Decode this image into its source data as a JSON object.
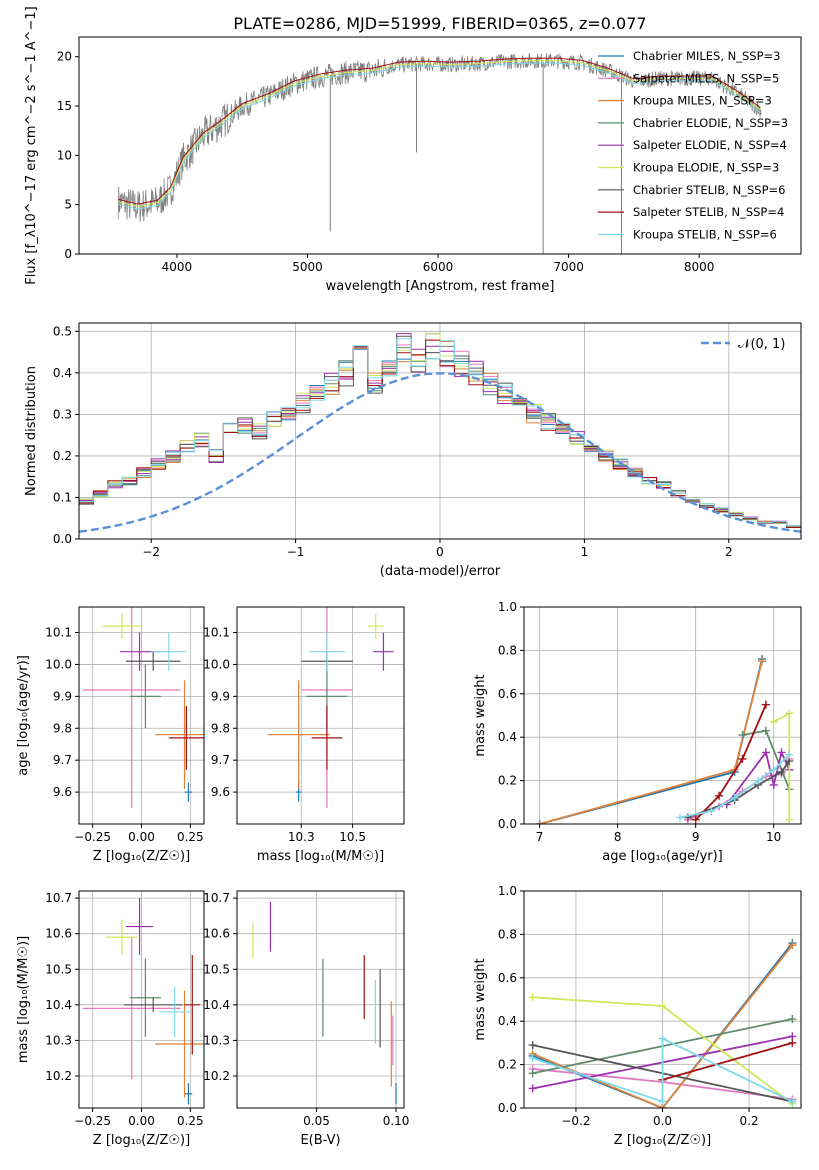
{
  "figure_title": "PLATE=0286, MJD=51999, FIBERID=0365, z=0.077",
  "colors": {
    "Chabrier MILES": "#1f77b4",
    "Salpeter MILES": "#e377c2",
    "Kroupa MILES": "#e0833a",
    "Chabrier ELODIE": "#5f8c6e",
    "Salpeter ELODIE": "#9b2fae",
    "Kroupa ELODIE": "#cde85a",
    "Chabrier STELIB": "#555555",
    "Salpeter STELIB": "#a01010",
    "Kroupa STELIB": "#7fd8e8",
    "data": "#808080",
    "gaussian": "#5b8fd6"
  },
  "chart_data": [
    {
      "id": "spectrum",
      "type": "line",
      "xlabel": "wavelength [Angstrom, rest frame]",
      "ylabel": "Flux [f_λ10^−17 erg cm^−2 s^−1 A^−1]",
      "xlim": [
        3250,
        8780
      ],
      "ylim": [
        0,
        22
      ],
      "xticks": [
        4000,
        5000,
        6000,
        7000,
        8000
      ],
      "yticks": [
        0,
        5,
        10,
        15,
        20
      ],
      "legend_position": "top-right",
      "legend": [
        "Chabrier MILES, N_SSP=3",
        "Salpeter MILES, N_SSP=5",
        "Kroupa MILES, N_SSP=3",
        "Chabrier ELODIE, N_SSP=3",
        "Salpeter ELODIE, N_SSP=4",
        "Kroupa ELODIE, N_SSP=3",
        "Chabrier STELIB, N_SSP=6",
        "Salpeter STELIB, N_SSP=4",
        "Kroupa STELIB, N_SSP=6"
      ],
      "continuum": {
        "x": [
          3550,
          3700,
          3850,
          3950,
          4050,
          4200,
          4350,
          4500,
          4700,
          4900,
          5100,
          5300,
          5500,
          5700,
          5900,
          6100,
          6300,
          6500,
          6700,
          6900,
          7100,
          7300,
          7500,
          7700,
          7900,
          8100,
          8300,
          8480
        ],
        "y": [
          5.3,
          4.8,
          5.2,
          6.5,
          9.6,
          12.0,
          13.4,
          15.0,
          16.0,
          17.3,
          18.0,
          18.4,
          18.6,
          19.2,
          19.3,
          19.2,
          19.3,
          19.5,
          19.6,
          19.6,
          19.4,
          18.6,
          17.5,
          17.8,
          17.8,
          17.8,
          16.2,
          14.5
        ]
      },
      "features": [
        {
          "x": 5175,
          "y": 2.3
        },
        {
          "x": 5835,
          "y": 10.3
        },
        {
          "x": 6805,
          "y": 0
        },
        {
          "x": 7405,
          "y": 0
        }
      ]
    },
    {
      "id": "residuals",
      "type": "histogram",
      "xlabel": "(data-model)/error",
      "ylabel": "Normed distribution",
      "xlim": [
        -2.5,
        2.5
      ],
      "ylim": [
        0,
        0.52
      ],
      "xticks": [
        -2,
        -1,
        0,
        1,
        2
      ],
      "yticks": [
        0.0,
        0.1,
        0.2,
        0.3,
        0.4,
        0.5
      ],
      "legend": [
        "𝒩(0, 1)"
      ],
      "legend_position": "top-right",
      "gaussian": {
        "mu": 0,
        "sigma": 1
      },
      "bin_width": 0.1,
      "bin_heights": [
        0.02,
        0.03,
        0.03,
        0.04,
        0.04,
        0.03,
        0.05,
        0.06,
        0.07,
        0.1,
        0.09,
        0.11,
        0.13,
        0.14,
        0.16,
        0.18,
        0.2,
        0.22,
        0.24,
        0.2,
        0.26,
        0.27,
        0.26,
        0.29,
        0.3,
        0.33,
        0.35,
        0.37,
        0.4,
        0.44,
        0.38,
        0.42,
        0.46,
        0.43,
        0.47,
        0.45,
        0.42,
        0.4,
        0.37,
        0.35,
        0.33,
        0.3,
        0.28,
        0.26,
        0.24,
        0.22,
        0.2,
        0.18,
        0.16,
        0.14,
        0.13,
        0.11,
        0.09,
        0.08,
        0.07,
        0.06,
        0.05,
        0.04,
        0.04,
        0.03,
        0.03,
        0.03,
        0.02,
        0.02,
        0.02,
        0.02,
        0.02,
        0.02,
        0.02,
        0.02
      ]
    },
    {
      "id": "age_vs_Z",
      "type": "scatter",
      "xlabel": "Z [log₁₀(Z/Z☉)]",
      "ylabel": "age  [log₁₀(age/yr)]",
      "xlim": [
        -0.32,
        0.32
      ],
      "ylim": [
        9.5,
        10.18
      ],
      "xticks": [
        -0.25,
        0.0,
        0.25
      ],
      "yticks": [
        9.6,
        9.7,
        9.8,
        9.9,
        10.0,
        10.1
      ],
      "points": [
        {
          "model": "Chabrier MILES",
          "x": 0.24,
          "xerr": 0.02,
          "y": 9.6,
          "yerr": 0.03
        },
        {
          "model": "Salpeter MILES",
          "x": -0.05,
          "xerr": 0.25,
          "y": 9.92,
          "yerr": 0.37
        },
        {
          "model": "Kroupa MILES",
          "x": 0.22,
          "xerr": 0.15,
          "y": 9.78,
          "yerr": 0.17
        },
        {
          "model": "Chabrier ELODIE",
          "x": 0.02,
          "xerr": 0.08,
          "y": 9.9,
          "yerr": 0.1
        },
        {
          "model": "Salpeter ELODIE",
          "x": -0.01,
          "xerr": 0.1,
          "y": 10.04,
          "yerr": 0.06
        },
        {
          "model": "Kroupa ELODIE",
          "x": -0.1,
          "xerr": 0.1,
          "y": 10.12,
          "yerr": 0.04
        },
        {
          "model": "Chabrier STELIB",
          "x": 0.06,
          "xerr": 0.14,
          "y": 10.01,
          "yerr": 0.03
        },
        {
          "model": "Salpeter STELIB",
          "x": 0.23,
          "xerr": 0.09,
          "y": 9.77,
          "yerr": 0.1
        },
        {
          "model": "Kroupa STELIB",
          "x": 0.14,
          "xerr": 0.09,
          "y": 10.04,
          "yerr": 0.06
        }
      ]
    },
    {
      "id": "age_vs_mass",
      "type": "scatter",
      "xlabel": "mass [log₁₀(M/M☉)]",
      "ylabel": "",
      "xlim": [
        10.05,
        10.7
      ],
      "ylim": [
        9.5,
        10.18
      ],
      "xticks": [
        10.3,
        10.5
      ],
      "yticks": [
        9.6,
        9.7,
        9.8,
        9.9,
        10.0,
        10.1
      ],
      "points": [
        {
          "model": "Chabrier MILES",
          "x": 10.29,
          "xerr": 0.01,
          "y": 9.6,
          "yerr": 0.03
        },
        {
          "model": "Salpeter MILES",
          "x": 10.4,
          "xerr": 0.1,
          "y": 9.92,
          "yerr": 0.37
        },
        {
          "model": "Kroupa MILES",
          "x": 10.29,
          "xerr": 0.12,
          "y": 9.78,
          "yerr": 0.17
        },
        {
          "model": "Chabrier ELODIE",
          "x": 10.4,
          "xerr": 0.08,
          "y": 9.9,
          "yerr": 0.1
        },
        {
          "model": "Salpeter ELODIE",
          "x": 10.62,
          "xerr": 0.04,
          "y": 10.04,
          "yerr": 0.06
        },
        {
          "model": "Kroupa ELODIE",
          "x": 10.59,
          "xerr": 0.03,
          "y": 10.12,
          "yerr": 0.04
        },
        {
          "model": "Chabrier STELIB",
          "x": 10.4,
          "xerr": 0.1,
          "y": 10.01,
          "yerr": 0.03
        },
        {
          "model": "Salpeter STELIB",
          "x": 10.4,
          "xerr": 0.06,
          "y": 9.77,
          "yerr": 0.1
        },
        {
          "model": "Kroupa STELIB",
          "x": 10.4,
          "xerr": 0.07,
          "y": 10.04,
          "yerr": 0.06
        }
      ]
    },
    {
      "id": "weight_vs_age",
      "type": "line",
      "xlabel": "age  [log₁₀(age/yr)]",
      "ylabel": "mass weight",
      "xlim": [
        6.8,
        10.35
      ],
      "ylim": [
        0,
        1.0
      ],
      "xticks": [
        7,
        8,
        9,
        10
      ],
      "yticks": [
        0.0,
        0.2,
        0.4,
        0.6,
        0.8,
        1.0
      ],
      "series": [
        {
          "model": "Chabrier MILES",
          "x": [
            7.0,
            9.5,
            9.85
          ],
          "y": [
            0.0,
            0.24,
            0.76
          ]
        },
        {
          "model": "Salpeter MILES",
          "x": [
            8.9,
            9.3,
            9.6,
            9.9,
            10.1,
            10.2
          ],
          "y": [
            0.02,
            0.08,
            0.15,
            0.22,
            0.23,
            0.3
          ]
        },
        {
          "model": "Kroupa MILES",
          "x": [
            7.0,
            9.5,
            9.85
          ],
          "y": [
            0.0,
            0.25,
            0.75
          ]
        },
        {
          "model": "Chabrier ELODIE",
          "x": [
            9.6,
            9.9,
            10.2
          ],
          "y": [
            0.41,
            0.43,
            0.16
          ]
        },
        {
          "model": "Salpeter ELODIE",
          "x": [
            9.4,
            9.9,
            10.0,
            10.1,
            10.2
          ],
          "y": [
            0.09,
            0.33,
            0.18,
            0.33,
            0.25
          ]
        },
        {
          "model": "Kroupa ELODIE",
          "x": [
            10.0,
            10.2,
            10.2
          ],
          "y": [
            0.47,
            0.51,
            0.02
          ]
        },
        {
          "model": "Chabrier STELIB",
          "x": [
            8.9,
            9.5,
            9.8,
            10.1,
            10.2
          ],
          "y": [
            0.03,
            0.11,
            0.18,
            0.24,
            0.29
          ]
        },
        {
          "model": "Salpeter STELIB",
          "x": [
            9.0,
            9.3,
            9.6,
            9.9
          ],
          "y": [
            0.02,
            0.13,
            0.3,
            0.55
          ]
        },
        {
          "model": "Kroupa STELIB",
          "x": [
            8.8,
            9.2,
            9.5,
            9.8,
            10.0,
            10.2
          ],
          "y": [
            0.03,
            0.06,
            0.12,
            0.2,
            0.25,
            0.32
          ]
        }
      ]
    },
    {
      "id": "mass_vs_Z",
      "type": "scatter",
      "xlabel": "Z [log₁₀(Z/Z☉)]",
      "ylabel": "mass [log₁₀(M/M☉)]",
      "xlim": [
        -0.32,
        0.32
      ],
      "ylim": [
        10.11,
        10.72
      ],
      "xticks": [
        -0.25,
        0.0,
        0.25
      ],
      "yticks": [
        10.2,
        10.3,
        10.4,
        10.5,
        10.6,
        10.7
      ],
      "points": [
        {
          "model": "Chabrier MILES",
          "x": 0.24,
          "xerr": 0.02,
          "y": 10.15,
          "yerr": 0.03
        },
        {
          "model": "Salpeter MILES",
          "x": -0.05,
          "xerr": 0.25,
          "y": 10.39,
          "yerr": 0.2
        },
        {
          "model": "Kroupa MILES",
          "x": 0.22,
          "xerr": 0.15,
          "y": 10.29,
          "yerr": 0.15
        },
        {
          "model": "Chabrier ELODIE",
          "x": 0.02,
          "xerr": 0.08,
          "y": 10.42,
          "yerr": 0.11
        },
        {
          "model": "Salpeter ELODIE",
          "x": -0.01,
          "xerr": 0.07,
          "y": 10.62,
          "yerr": 0.08
        },
        {
          "model": "Kroupa ELODIE",
          "x": -0.1,
          "xerr": 0.08,
          "y": 10.59,
          "yerr": 0.05
        },
        {
          "model": "Chabrier STELIB",
          "x": 0.06,
          "xerr": 0.15,
          "y": 10.4,
          "yerr": 0.02
        },
        {
          "model": "Salpeter STELIB",
          "x": 0.26,
          "xerr": 0.04,
          "y": 10.4,
          "yerr": 0.14
        },
        {
          "model": "Kroupa STELIB",
          "x": 0.17,
          "xerr": 0.08,
          "y": 10.38,
          "yerr": 0.07
        }
      ]
    },
    {
      "id": "mass_vs_EBV",
      "type": "scatter",
      "xlabel": "E(B-V)",
      "ylabel": "",
      "xlim": [
        0.0,
        0.105
      ],
      "ylim": [
        10.11,
        10.72
      ],
      "xticks": [
        0.05,
        0.1
      ],
      "yticks": [
        10.2,
        10.3,
        10.4,
        10.5,
        10.6,
        10.7
      ],
      "points": [
        {
          "model": "Chabrier MILES",
          "x": 0.1,
          "y": 10.15,
          "yerr": 0.03
        },
        {
          "model": "Salpeter MILES",
          "x": 0.098,
          "y": 10.3,
          "yerr": 0.07
        },
        {
          "model": "Kroupa MILES",
          "x": 0.097,
          "y": 10.29,
          "yerr": 0.12
        },
        {
          "model": "Chabrier ELODIE",
          "x": 0.054,
          "y": 10.42,
          "yerr": 0.11
        },
        {
          "model": "Salpeter ELODIE",
          "x": 0.021,
          "y": 10.62,
          "yerr": 0.07
        },
        {
          "model": "Kroupa ELODIE",
          "x": 0.01,
          "y": 10.58,
          "yerr": 0.05
        },
        {
          "model": "Chabrier STELIB",
          "x": 0.09,
          "y": 10.39,
          "yerr": 0.11
        },
        {
          "model": "Salpeter STELIB",
          "x": 0.08,
          "y": 10.45,
          "yerr": 0.09
        },
        {
          "model": "Kroupa STELIB",
          "x": 0.087,
          "y": 10.38,
          "yerr": 0.09
        }
      ]
    },
    {
      "id": "weight_vs_Z",
      "type": "line",
      "xlabel": "Z [log₁₀(Z/Z☉)]",
      "ylabel": "mass weight",
      "xlim": [
        -0.32,
        0.32
      ],
      "ylim": [
        0,
        1.0
      ],
      "xticks": [
        -0.2,
        0.0,
        0.2
      ],
      "yticks": [
        0.0,
        0.2,
        0.4,
        0.6,
        0.8,
        1.0
      ],
      "series": [
        {
          "model": "Chabrier MILES",
          "x": [
            -0.3,
            0.0,
            0.3
          ],
          "y": [
            0.24,
            0.0,
            0.76
          ]
        },
        {
          "model": "Salpeter MILES",
          "x": [
            -0.3,
            0.0,
            0.3
          ],
          "y": [
            0.18,
            0.12,
            0.04
          ]
        },
        {
          "model": "Kroupa MILES",
          "x": [
            -0.3,
            0.0,
            0.3
          ],
          "y": [
            0.25,
            0.0,
            0.75
          ]
        },
        {
          "model": "Chabrier ELODIE",
          "x": [
            -0.3,
            0.3
          ],
          "y": [
            0.16,
            0.41
          ]
        },
        {
          "model": "Salpeter ELODIE",
          "x": [
            -0.3,
            0.3
          ],
          "y": [
            0.09,
            0.33
          ]
        },
        {
          "model": "Kroupa ELODIE",
          "x": [
            -0.3,
            0.0,
            0.3
          ],
          "y": [
            0.51,
            0.47,
            0.02
          ]
        },
        {
          "model": "Chabrier STELIB",
          "x": [
            -0.3,
            0.3
          ],
          "y": [
            0.29,
            0.03
          ]
        },
        {
          "model": "Salpeter STELIB",
          "x": [
            0.0,
            0.3
          ],
          "y": [
            0.13,
            0.3
          ]
        },
        {
          "model": "Kroupa STELIB",
          "x": [
            -0.3,
            0.0,
            0.0,
            0.3
          ],
          "y": [
            0.23,
            0.03,
            0.32,
            0.03
          ]
        }
      ]
    }
  ]
}
